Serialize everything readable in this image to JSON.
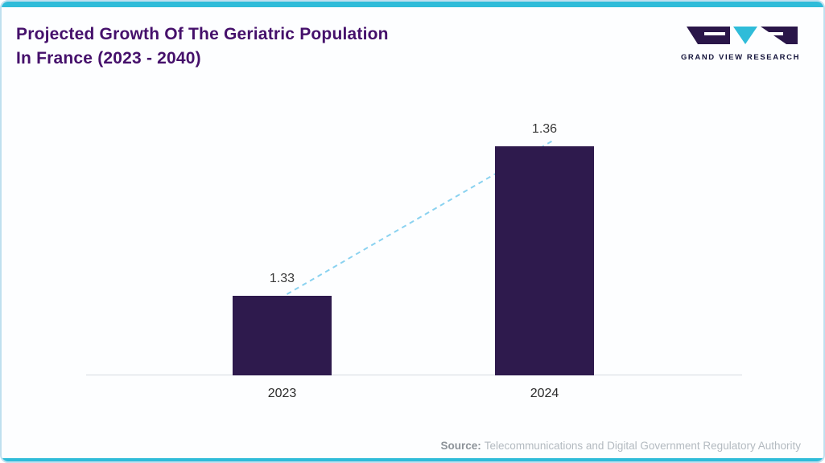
{
  "header": {
    "title_line1": "Projected Growth Of The Geriatric Population",
    "title_line2": "In France (2023 - 2040)"
  },
  "logo": {
    "text": "GRAND VIEW RESEARCH"
  },
  "source": {
    "label": "Source:",
    "text": "Telecommunications and Digital Government Regulatory Authority"
  },
  "colors": {
    "bar": "#2e1a4d",
    "accent_cyan": "#2fbcd9",
    "title_purple": "#45106b",
    "trend_line": "#8ad2f0",
    "border": "#bfe0ef",
    "logo_dark": "#2a1649"
  },
  "chart_data": {
    "type": "bar",
    "categories": [
      "2023",
      "2024"
    ],
    "values": [
      1.33,
      1.36
    ],
    "value_labels": [
      "1.33",
      "1.36"
    ],
    "title": "Projected Growth Of The Geriatric Population In France (2023 - 2040)",
    "xlabel": "",
    "ylabel": "",
    "ylim": [
      1.314,
      1.366
    ],
    "grid": false,
    "legend": false,
    "annotations": "dashed light-blue trend line connecting bar tops"
  }
}
